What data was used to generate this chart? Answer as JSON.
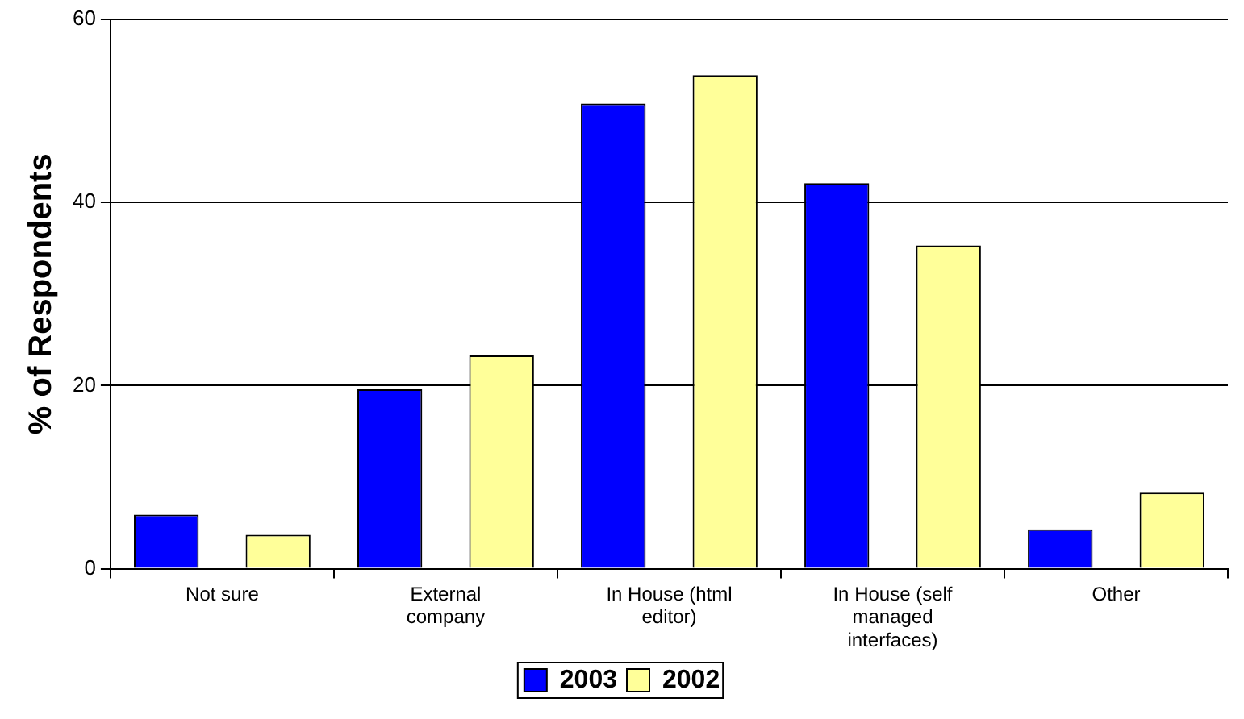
{
  "chart_data": {
    "type": "bar",
    "ylabel": "% of Respondents",
    "categories": [
      "Not sure",
      "External company",
      "In House (html editor)",
      "In House (self managed interfaces)",
      "Other"
    ],
    "series": [
      {
        "name": "2003",
        "color": "#0000ff",
        "values": [
          5.9,
          19.6,
          50.8,
          42.1,
          4.3
        ]
      },
      {
        "name": "2002",
        "color": "#ffff99",
        "values": [
          3.7,
          23.3,
          53.9,
          35.3,
          8.3
        ]
      }
    ],
    "ylim": [
      0,
      60
    ],
    "yticks": [
      0,
      20,
      40,
      60
    ],
    "grid": "y",
    "legend": "bottom"
  }
}
